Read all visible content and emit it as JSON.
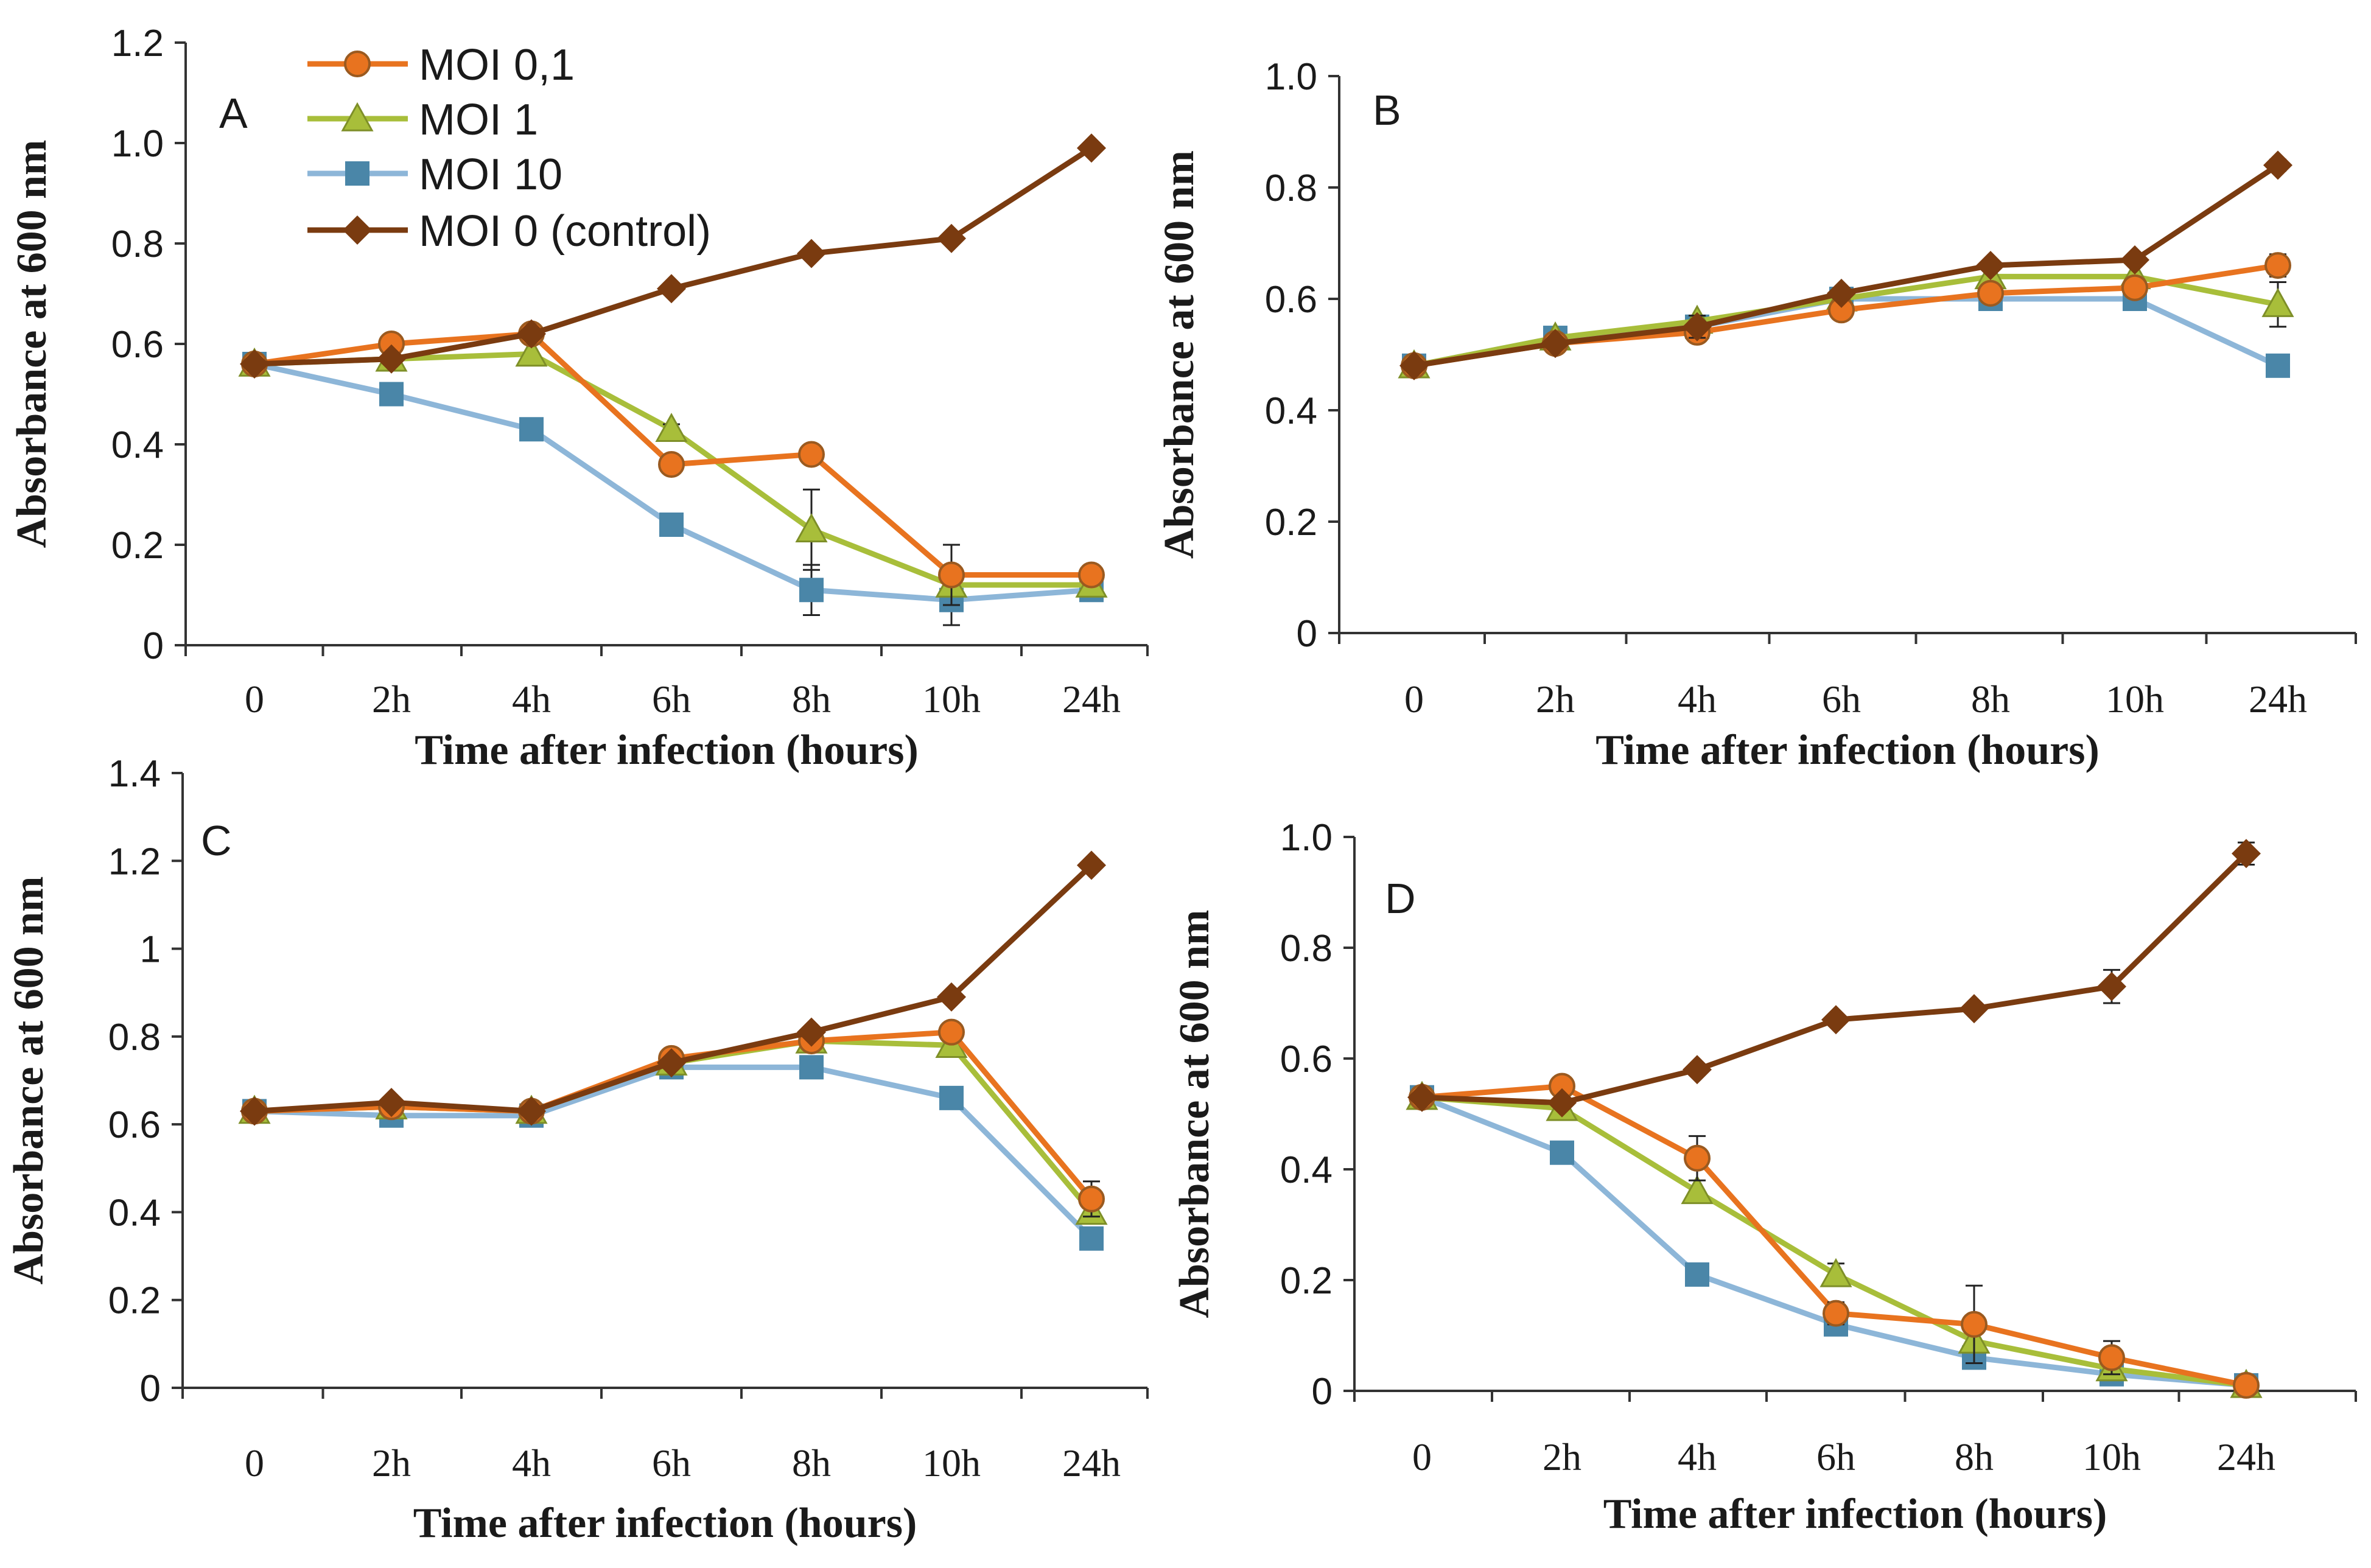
{
  "colors": {
    "moi01": "#E8731F",
    "moi1": "#A8BE3A",
    "moi10": "#8DB6D8",
    "moi10_marker": "#4A86A8",
    "control": "#7A3B10",
    "axis": "#333333"
  },
  "legend": [
    {
      "key": "moi01",
      "label": "MOI 0,1",
      "marker": "circle"
    },
    {
      "key": "moi1",
      "label": "MOI 1",
      "marker": "triangle"
    },
    {
      "key": "moi10",
      "label": "MOI 10",
      "marker": "square"
    },
    {
      "key": "control",
      "label": "MOI 0 (control)",
      "marker": "diamond"
    }
  ],
  "chart_data": [
    {
      "panel": "A",
      "type": "line",
      "categories": [
        "0",
        "2h",
        "4h",
        "6h",
        "8h",
        "10h",
        "24h"
      ],
      "xlabel": "Time after infection (hours)",
      "ylabel": "Absorbance at 600 nm",
      "ylim": [
        0,
        1.2
      ],
      "yticks": [
        "0",
        "0.2",
        "0.4",
        "0.6",
        "0.8",
        "1.0",
        "1.2"
      ],
      "series": [
        {
          "name": "MOI 0,1",
          "key": "moi01",
          "values": [
            0.56,
            0.6,
            0.62,
            0.36,
            0.38,
            0.14,
            0.14
          ],
          "errors": [
            0,
            0,
            0,
            0,
            0,
            0.06,
            0
          ]
        },
        {
          "name": "MOI 1",
          "key": "moi1",
          "values": [
            0.56,
            0.57,
            0.58,
            0.43,
            0.23,
            0.12,
            0.12
          ],
          "errors": [
            0,
            0,
            0,
            0.01,
            0.08,
            0,
            0
          ]
        },
        {
          "name": "MOI 10",
          "key": "moi10",
          "values": [
            0.56,
            0.5,
            0.43,
            0.24,
            0.11,
            0.09,
            0.11
          ],
          "errors": [
            0,
            0,
            0,
            0,
            0.05,
            0.05,
            0
          ]
        },
        {
          "name": "MOI 0 (control)",
          "key": "control",
          "values": [
            0.56,
            0.57,
            0.62,
            0.71,
            0.78,
            0.81,
            0.99
          ],
          "errors": [
            0,
            0,
            0,
            0,
            0,
            0,
            0
          ]
        }
      ]
    },
    {
      "panel": "B",
      "type": "line",
      "categories": [
        "0",
        "2h",
        "4h",
        "6h",
        "8h",
        "10h",
        "24h"
      ],
      "xlabel": "Time after infection (hours)",
      "ylabel": "Absorbance at 600 nm",
      "ylim": [
        0,
        1.0
      ],
      "yticks": [
        "0",
        "0.2",
        "0.4",
        "0.6",
        "0.8",
        "1.0"
      ],
      "series": [
        {
          "name": "MOI 0,1",
          "key": "moi01",
          "values": [
            0.48,
            0.52,
            0.54,
            0.58,
            0.61,
            0.62,
            0.66
          ],
          "errors": [
            0,
            0,
            0,
            0.01,
            0,
            0,
            0.02
          ]
        },
        {
          "name": "MOI 1",
          "key": "moi1",
          "values": [
            0.48,
            0.53,
            0.56,
            0.6,
            0.64,
            0.64,
            0.59
          ],
          "errors": [
            0,
            0,
            0,
            0,
            0,
            0,
            0.04
          ]
        },
        {
          "name": "MOI 10",
          "key": "moi10",
          "values": [
            0.48,
            0.53,
            0.55,
            0.6,
            0.6,
            0.6,
            0.48
          ],
          "errors": [
            0,
            0,
            0,
            0,
            0,
            0,
            0
          ]
        },
        {
          "name": "MOI 0 (control)",
          "key": "control",
          "values": [
            0.48,
            0.52,
            0.55,
            0.61,
            0.66,
            0.67,
            0.84
          ],
          "errors": [
            0,
            0,
            0.02,
            0,
            0,
            0,
            0.01
          ]
        }
      ]
    },
    {
      "panel": "C",
      "type": "line",
      "categories": [
        "0",
        "2h",
        "4h",
        "6h",
        "8h",
        "10h",
        "24h"
      ],
      "xlabel": "Time after infection (hours)",
      "ylabel": "Absorbance at 600 nm",
      "ylim": [
        0,
        1.4
      ],
      "yticks": [
        "0",
        "0.2",
        "0.4",
        "0.6",
        "0.8",
        "1",
        "1.2",
        "1.4"
      ],
      "series": [
        {
          "name": "MOI 0,1",
          "key": "moi01",
          "values": [
            0.63,
            0.64,
            0.63,
            0.75,
            0.79,
            0.81,
            0.43
          ],
          "errors": [
            0,
            0,
            0,
            0,
            0,
            0,
            0.04
          ]
        },
        {
          "name": "MOI 1",
          "key": "moi1",
          "values": [
            0.63,
            0.64,
            0.63,
            0.74,
            0.79,
            0.78,
            0.4
          ],
          "errors": [
            0,
            0,
            0,
            0,
            0,
            0,
            0
          ]
        },
        {
          "name": "MOI 10",
          "key": "moi10",
          "values": [
            0.63,
            0.62,
            0.62,
            0.73,
            0.73,
            0.66,
            0.34
          ],
          "errors": [
            0,
            0,
            0,
            0,
            0,
            0,
            0
          ]
        },
        {
          "name": "MOI 0 (control)",
          "key": "control",
          "values": [
            0.63,
            0.65,
            0.63,
            0.74,
            0.81,
            0.89,
            1.19
          ],
          "errors": [
            0,
            0,
            0,
            0,
            0,
            0,
            0
          ]
        }
      ]
    },
    {
      "panel": "D",
      "type": "line",
      "categories": [
        "0",
        "2h",
        "4h",
        "6h",
        "8h",
        "10h",
        "24h"
      ],
      "xlabel": "Time after infection (hours)",
      "ylabel": "Absorbance at  600 nm",
      "ylim": [
        0,
        1.0
      ],
      "yticks": [
        "0",
        "0.2",
        "0.4",
        "0.6",
        "0.8",
        "1.0"
      ],
      "series": [
        {
          "name": "MOI 0,1",
          "key": "moi01",
          "values": [
            0.53,
            0.55,
            0.42,
            0.14,
            0.12,
            0.06,
            0.01
          ],
          "errors": [
            0,
            0,
            0.04,
            0.02,
            0.07,
            0.03,
            0
          ]
        },
        {
          "name": "MOI 1",
          "key": "moi1",
          "values": [
            0.53,
            0.51,
            0.36,
            0.21,
            0.09,
            0.04,
            0.01
          ],
          "errors": [
            0,
            0,
            0,
            0.02,
            0,
            0,
            0
          ]
        },
        {
          "name": "MOI 10",
          "key": "moi10",
          "values": [
            0.53,
            0.43,
            0.21,
            0.12,
            0.06,
            0.03,
            0.01
          ],
          "errors": [
            0,
            0,
            0,
            0,
            0,
            0,
            0
          ]
        },
        {
          "name": "MOI 0 (control)",
          "key": "control",
          "values": [
            0.53,
            0.52,
            0.58,
            0.67,
            0.69,
            0.73,
            0.97
          ],
          "errors": [
            0,
            0,
            0,
            0,
            0,
            0.03,
            0.02
          ]
        }
      ]
    }
  ]
}
